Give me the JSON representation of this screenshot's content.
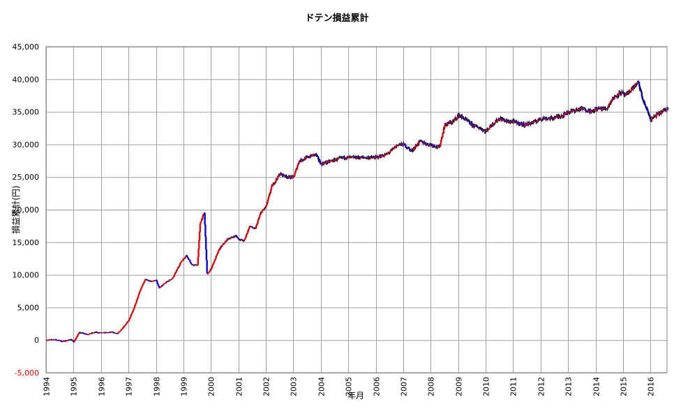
{
  "chart_data": {
    "type": "candlestick",
    "title": "ドテン損益累計",
    "xlabel": "年月",
    "ylabel": "損益累計(円)",
    "ylim": [
      -5000,
      45000
    ],
    "xlim": [
      1994.0,
      2016.6
    ],
    "grid": true,
    "y_ticks": [
      45000,
      40000,
      35000,
      30000,
      25000,
      20000,
      15000,
      10000,
      5000,
      0,
      -5000
    ],
    "y_tick_labels": [
      "45,000",
      "40,000",
      "35,000",
      "30,000",
      "25,000",
      "20,000",
      "15,000",
      "10,000",
      "5,000",
      "0",
      "-5,000"
    ],
    "x_ticks": [
      1994,
      1995,
      1996,
      1997,
      1998,
      1999,
      2000,
      2001,
      2002,
      2003,
      2004,
      2005,
      2006,
      2007,
      2008,
      2009,
      2010,
      2011,
      2012,
      2013,
      2014,
      2015,
      2016
    ],
    "x_tick_labels": [
      "1994",
      "1995",
      "1996",
      "1997",
      "1998",
      "1999",
      "2000",
      "2001",
      "2002",
      "2003",
      "2004",
      "2005",
      "2006",
      "2007",
      "2008",
      "2009",
      "2010",
      "2011",
      "2012",
      "2013",
      "2014",
      "2015",
      "2016"
    ],
    "up_color": "#ff0000",
    "down_color": "#0000ff",
    "wick_color": "#000000",
    "series_path": [
      [
        1994.0,
        0
      ],
      [
        1994.3,
        100
      ],
      [
        1994.6,
        -200
      ],
      [
        1994.9,
        100
      ],
      [
        1995.0,
        -300
      ],
      [
        1995.2,
        1200
      ],
      [
        1995.5,
        900
      ],
      [
        1995.8,
        1200
      ],
      [
        1996.0,
        1100
      ],
      [
        1996.4,
        1200
      ],
      [
        1996.6,
        1000
      ],
      [
        1996.8,
        2000
      ],
      [
        1997.0,
        3000
      ],
      [
        1997.2,
        5000
      ],
      [
        1997.4,
        7500
      ],
      [
        1997.6,
        9300
      ],
      [
        1997.8,
        9000
      ],
      [
        1998.0,
        9200
      ],
      [
        1998.1,
        8000
      ],
      [
        1998.4,
        9000
      ],
      [
        1998.6,
        9500
      ],
      [
        1998.9,
        12000
      ],
      [
        1999.1,
        13000
      ],
      [
        1999.3,
        11500
      ],
      [
        1999.5,
        11500
      ],
      [
        1999.6,
        18000
      ],
      [
        1999.75,
        19500
      ],
      [
        1999.85,
        10000
      ],
      [
        2000.0,
        11000
      ],
      [
        2000.1,
        12000
      ],
      [
        2000.3,
        14000
      ],
      [
        2000.6,
        15500
      ],
      [
        2000.9,
        16000
      ],
      [
        2001.0,
        15500
      ],
      [
        2001.2,
        15200
      ],
      [
        2001.4,
        17500
      ],
      [
        2001.6,
        17000
      ],
      [
        2001.8,
        19500
      ],
      [
        2002.0,
        20500
      ],
      [
        2002.2,
        23500
      ],
      [
        2002.5,
        25500
      ],
      [
        2002.8,
        25000
      ],
      [
        2003.0,
        25000
      ],
      [
        2003.2,
        27500
      ],
      [
        2003.4,
        27800
      ],
      [
        2003.6,
        28200
      ],
      [
        2003.8,
        28500
      ],
      [
        2004.0,
        27000
      ],
      [
        2004.4,
        27500
      ],
      [
        2004.8,
        28000
      ],
      [
        2005.0,
        28000
      ],
      [
        2005.4,
        28000
      ],
      [
        2005.8,
        28000
      ],
      [
        2006.0,
        28000
      ],
      [
        2006.4,
        28500
      ],
      [
        2006.8,
        30000
      ],
      [
        2007.0,
        30000
      ],
      [
        2007.3,
        29000
      ],
      [
        2007.6,
        30500
      ],
      [
        2007.9,
        30000
      ],
      [
        2008.0,
        30000
      ],
      [
        2008.3,
        29500
      ],
      [
        2008.5,
        33000
      ],
      [
        2008.8,
        33500
      ],
      [
        2009.0,
        34500
      ],
      [
        2009.2,
        34000
      ],
      [
        2009.5,
        33000
      ],
      [
        2009.8,
        32500
      ],
      [
        2010.0,
        32000
      ],
      [
        2010.2,
        33000
      ],
      [
        2010.5,
        34000
      ],
      [
        2010.8,
        33500
      ],
      [
        2011.0,
        33500
      ],
      [
        2011.4,
        33000
      ],
      [
        2011.8,
        33500
      ],
      [
        2012.0,
        34000
      ],
      [
        2012.4,
        34000
      ],
      [
        2012.8,
        34500
      ],
      [
        2013.0,
        35000
      ],
      [
        2013.5,
        35500
      ],
      [
        2013.9,
        35000
      ],
      [
        2014.0,
        35500
      ],
      [
        2014.4,
        35500
      ],
      [
        2014.6,
        37000
      ],
      [
        2014.9,
        38000
      ],
      [
        2015.1,
        37500
      ],
      [
        2015.3,
        38500
      ],
      [
        2015.55,
        39500
      ],
      [
        2015.7,
        37000
      ],
      [
        2016.0,
        33800
      ],
      [
        2016.2,
        34500
      ],
      [
        2016.4,
        35000
      ],
      [
        2016.6,
        35500
      ]
    ]
  }
}
